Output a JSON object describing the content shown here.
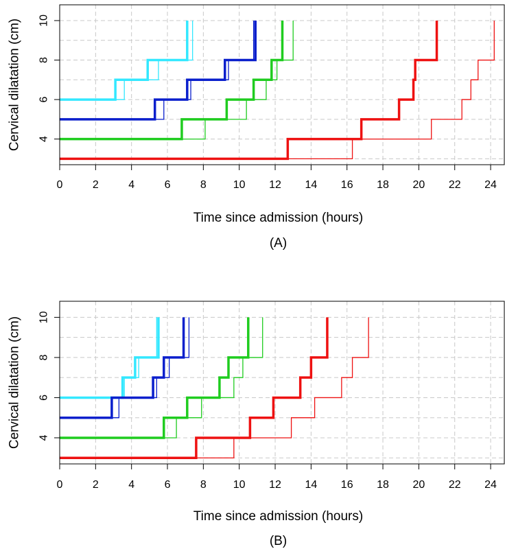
{
  "colors": {
    "cyan": "#33e8ff",
    "blue": "#0a1fcc",
    "green": "#1fcc1f",
    "red": "#ee1111"
  },
  "chart_data": [
    {
      "type": "line",
      "panel_label": "(A)",
      "xlabel": "Time since admission (hours)",
      "ylabel": "Cervical dilatation (cm)",
      "xlim": [
        0,
        24.8
      ],
      "ylim": [
        2.7,
        10.8
      ],
      "x_ticks": [
        0,
        2,
        4,
        6,
        8,
        10,
        12,
        14,
        16,
        18,
        20,
        22,
        24
      ],
      "y_ticks": [
        4,
        6,
        8,
        10
      ],
      "grid_y": [
        3,
        4,
        5,
        6,
        7,
        8,
        9,
        10
      ],
      "grid": true,
      "step": true,
      "series": [
        {
          "color": "cyan",
          "weight": "thick",
          "x": [
            0,
            3.1,
            4.9,
            7.1,
            7.1
          ],
          "y": [
            6,
            7,
            8,
            10,
            10
          ]
        },
        {
          "color": "cyan",
          "weight": "thin",
          "x": [
            0,
            3.6,
            5.5,
            7.4,
            7.4
          ],
          "y": [
            6,
            7,
            8,
            10,
            10
          ]
        },
        {
          "color": "blue",
          "weight": "thick",
          "x": [
            0,
            5.3,
            7.1,
            9.2,
            10.9,
            10.9
          ],
          "y": [
            5,
            6,
            7,
            8,
            10,
            10
          ]
        },
        {
          "color": "blue",
          "weight": "thin",
          "x": [
            0,
            5.8,
            7.3,
            9.4,
            10.8,
            10.8
          ],
          "y": [
            5,
            6,
            7,
            8,
            10,
            10
          ]
        },
        {
          "color": "green",
          "weight": "thick",
          "x": [
            0,
            6.8,
            9.3,
            10.8,
            11.8,
            12.4,
            12.4
          ],
          "y": [
            4,
            5,
            6,
            7,
            8,
            10,
            10
          ]
        },
        {
          "color": "green",
          "weight": "thin",
          "x": [
            0,
            8.1,
            10.4,
            11.5,
            12.1,
            13.0,
            13.0
          ],
          "y": [
            4,
            5,
            6,
            7,
            8,
            10,
            10
          ]
        },
        {
          "color": "red",
          "weight": "thick",
          "x": [
            0,
            12.7,
            16.8,
            18.9,
            19.7,
            19.8,
            21.0,
            21.0
          ],
          "y": [
            3,
            4,
            5,
            6,
            7,
            8,
            10,
            10
          ]
        },
        {
          "color": "red",
          "weight": "thin",
          "x": [
            0,
            16.3,
            20.7,
            22.4,
            22.9,
            23.3,
            24.2,
            24.2
          ],
          "y": [
            3,
            4,
            5,
            6,
            7,
            8,
            10,
            10
          ]
        }
      ]
    },
    {
      "type": "line",
      "panel_label": "(B)",
      "xlabel": "Time since admission (hours)",
      "ylabel": "Cervical dilatation (cm)",
      "xlim": [
        0,
        24.8
      ],
      "ylim": [
        2.7,
        10.8
      ],
      "x_ticks": [
        0,
        2,
        4,
        6,
        8,
        10,
        12,
        14,
        16,
        18,
        20,
        22,
        24
      ],
      "y_ticks": [
        4,
        6,
        8,
        10
      ],
      "grid_y": [
        3,
        4,
        5,
        6,
        7,
        8,
        9,
        10
      ],
      "grid": true,
      "step": true,
      "series": [
        {
          "color": "cyan",
          "weight": "thick",
          "x": [
            0,
            3.5,
            4.2,
            5.5,
            5.5
          ],
          "y": [
            6,
            7,
            8,
            10,
            10
          ]
        },
        {
          "color": "cyan",
          "weight": "thin",
          "x": [
            0,
            3.6,
            4.4,
            5.4,
            5.4
          ],
          "y": [
            6,
            7,
            8,
            10,
            10
          ]
        },
        {
          "color": "blue",
          "weight": "thick",
          "x": [
            0,
            2.9,
            5.2,
            5.8,
            6.9,
            6.9
          ],
          "y": [
            5,
            6,
            7,
            8,
            10,
            10
          ]
        },
        {
          "color": "blue",
          "weight": "thin",
          "x": [
            0,
            3.3,
            5.4,
            6.1,
            7.2,
            7.2
          ],
          "y": [
            5,
            6,
            7,
            8,
            10,
            10
          ]
        },
        {
          "color": "green",
          "weight": "thick",
          "x": [
            0,
            5.8,
            7.1,
            8.9,
            9.4,
            10.5,
            10.5
          ],
          "y": [
            4,
            5,
            6,
            7,
            8,
            10,
            10
          ]
        },
        {
          "color": "green",
          "weight": "thin",
          "x": [
            0,
            6.5,
            7.9,
            9.7,
            10.2,
            11.3,
            11.3
          ],
          "y": [
            4,
            5,
            6,
            7,
            8,
            10,
            10
          ]
        },
        {
          "color": "red",
          "weight": "thick",
          "x": [
            0,
            7.6,
            10.6,
            11.9,
            13.4,
            14.0,
            14.9,
            14.9
          ],
          "y": [
            3,
            4,
            5,
            6,
            7,
            8,
            10,
            10
          ]
        },
        {
          "color": "red",
          "weight": "thin",
          "x": [
            0,
            9.7,
            12.9,
            14.2,
            15.7,
            16.3,
            17.2,
            17.2
          ],
          "y": [
            3,
            4,
            5,
            6,
            7,
            8,
            10,
            10
          ]
        }
      ]
    }
  ]
}
